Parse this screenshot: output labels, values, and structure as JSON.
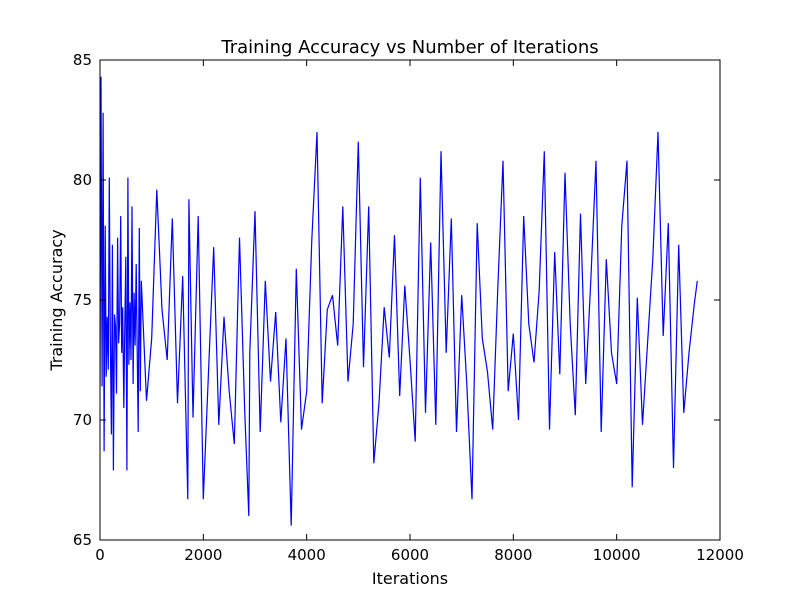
{
  "chart_data": {
    "type": "line",
    "title": "Training Accuracy vs Number of Iterations",
    "xlabel": "Iterations",
    "ylabel": "Training Accuracy",
    "xlim": [
      0,
      12000
    ],
    "ylim": [
      65,
      85
    ],
    "xticks": [
      0,
      2000,
      4000,
      6000,
      8000,
      10000,
      12000
    ],
    "yticks": [
      65,
      70,
      75,
      80,
      85
    ],
    "xtick_labels": [
      "0",
      "2000",
      "4000",
      "6000",
      "8000",
      "10000",
      "12000"
    ],
    "ytick_labels": [
      "65",
      "70",
      "75",
      "80",
      "85"
    ],
    "grid": false,
    "legend": "none",
    "colors": {
      "line": "#0000ff",
      "axes": "#000000",
      "background": "#ffffff"
    },
    "series": [
      {
        "color": "#0000ff",
        "x": [
          0,
          20,
          40,
          60,
          80,
          100,
          120,
          140,
          160,
          180,
          200,
          220,
          240,
          260,
          280,
          300,
          320,
          340,
          360,
          380,
          400,
          420,
          440,
          460,
          480,
          500,
          520,
          540,
          560,
          580,
          600,
          620,
          640,
          660,
          680,
          700,
          720,
          740,
          760,
          780,
          800,
          900,
          1000,
          1100,
          1200,
          1300,
          1400,
          1500,
          1600,
          1700,
          1720,
          1800,
          1900,
          2000,
          2100,
          2200,
          2300,
          2400,
          2500,
          2600,
          2700,
          2800,
          2880,
          2900,
          3000,
          3100,
          3200,
          3300,
          3400,
          3500,
          3600,
          3700,
          3800,
          3900,
          4000,
          4100,
          4200,
          4300,
          4400,
          4500,
          4600,
          4700,
          4800,
          4900,
          5000,
          5100,
          5200,
          5300,
          5400,
          5500,
          5600,
          5700,
          5800,
          5900,
          6000,
          6100,
          6200,
          6300,
          6400,
          6500,
          6600,
          6700,
          6800,
          6900,
          7000,
          7100,
          7200,
          7300,
          7400,
          7500,
          7600,
          7700,
          7800,
          7900,
          8000,
          8100,
          8200,
          8300,
          8400,
          8500,
          8600,
          8700,
          8800,
          8900,
          9000,
          9100,
          9200,
          9300,
          9400,
          9500,
          9600,
          9700,
          9800,
          9900,
          10000,
          10100,
          10200,
          10300,
          10400,
          10500,
          10600,
          10700,
          10800,
          10900,
          11000,
          11100,
          11200,
          11300,
          11400,
          11500,
          11560
        ],
        "y": [
          71.4,
          84.3,
          71.4,
          82.8,
          68.7,
          78.1,
          71.8,
          74.3,
          72.1,
          80.1,
          73.5,
          69.4,
          77.3,
          67.9,
          74.4,
          73.9,
          71.1,
          77.6,
          73.2,
          74.0,
          78.5,
          72.8,
          74.7,
          70.5,
          73.9,
          76.8,
          67.9,
          80.1,
          72.3,
          74.9,
          72.5,
          78.9,
          71.5,
          75.3,
          73.1,
          76.5,
          72.9,
          69.5,
          78.0,
          71.2,
          75.8,
          70.8,
          73.4,
          79.6,
          74.6,
          72.5,
          78.4,
          70.7,
          76.0,
          66.7,
          79.2,
          70.1,
          78.5,
          66.7,
          72.0,
          77.2,
          69.8,
          74.3,
          71.2,
          69.0,
          77.6,
          70.4,
          66.0,
          72.8,
          78.7,
          69.5,
          75.8,
          71.6,
          74.5,
          69.9,
          73.4,
          65.6,
          76.3,
          69.6,
          71.2,
          77.5,
          82.0,
          70.7,
          74.6,
          75.2,
          73.1,
          78.9,
          71.6,
          74.0,
          81.6,
          72.2,
          78.9,
          68.2,
          70.7,
          74.7,
          72.6,
          77.7,
          71.0,
          75.6,
          72.5,
          69.1,
          80.1,
          70.3,
          77.4,
          69.8,
          81.2,
          72.8,
          78.4,
          69.5,
          75.2,
          71.5,
          66.7,
          78.2,
          73.4,
          72.0,
          69.6,
          75.5,
          80.8,
          71.2,
          73.6,
          70.0,
          78.5,
          74.0,
          72.4,
          75.4,
          81.2,
          69.6,
          77.0,
          71.9,
          80.3,
          74.0,
          70.2,
          78.6,
          71.5,
          75.8,
          80.8,
          69.5,
          76.7,
          72.8,
          71.5,
          78.1,
          80.8,
          67.2,
          75.1,
          69.8,
          73.3,
          76.7,
          82.0,
          73.5,
          78.2,
          68.0,
          77.3,
          70.3,
          72.8,
          74.8,
          75.8
        ]
      }
    ]
  }
}
